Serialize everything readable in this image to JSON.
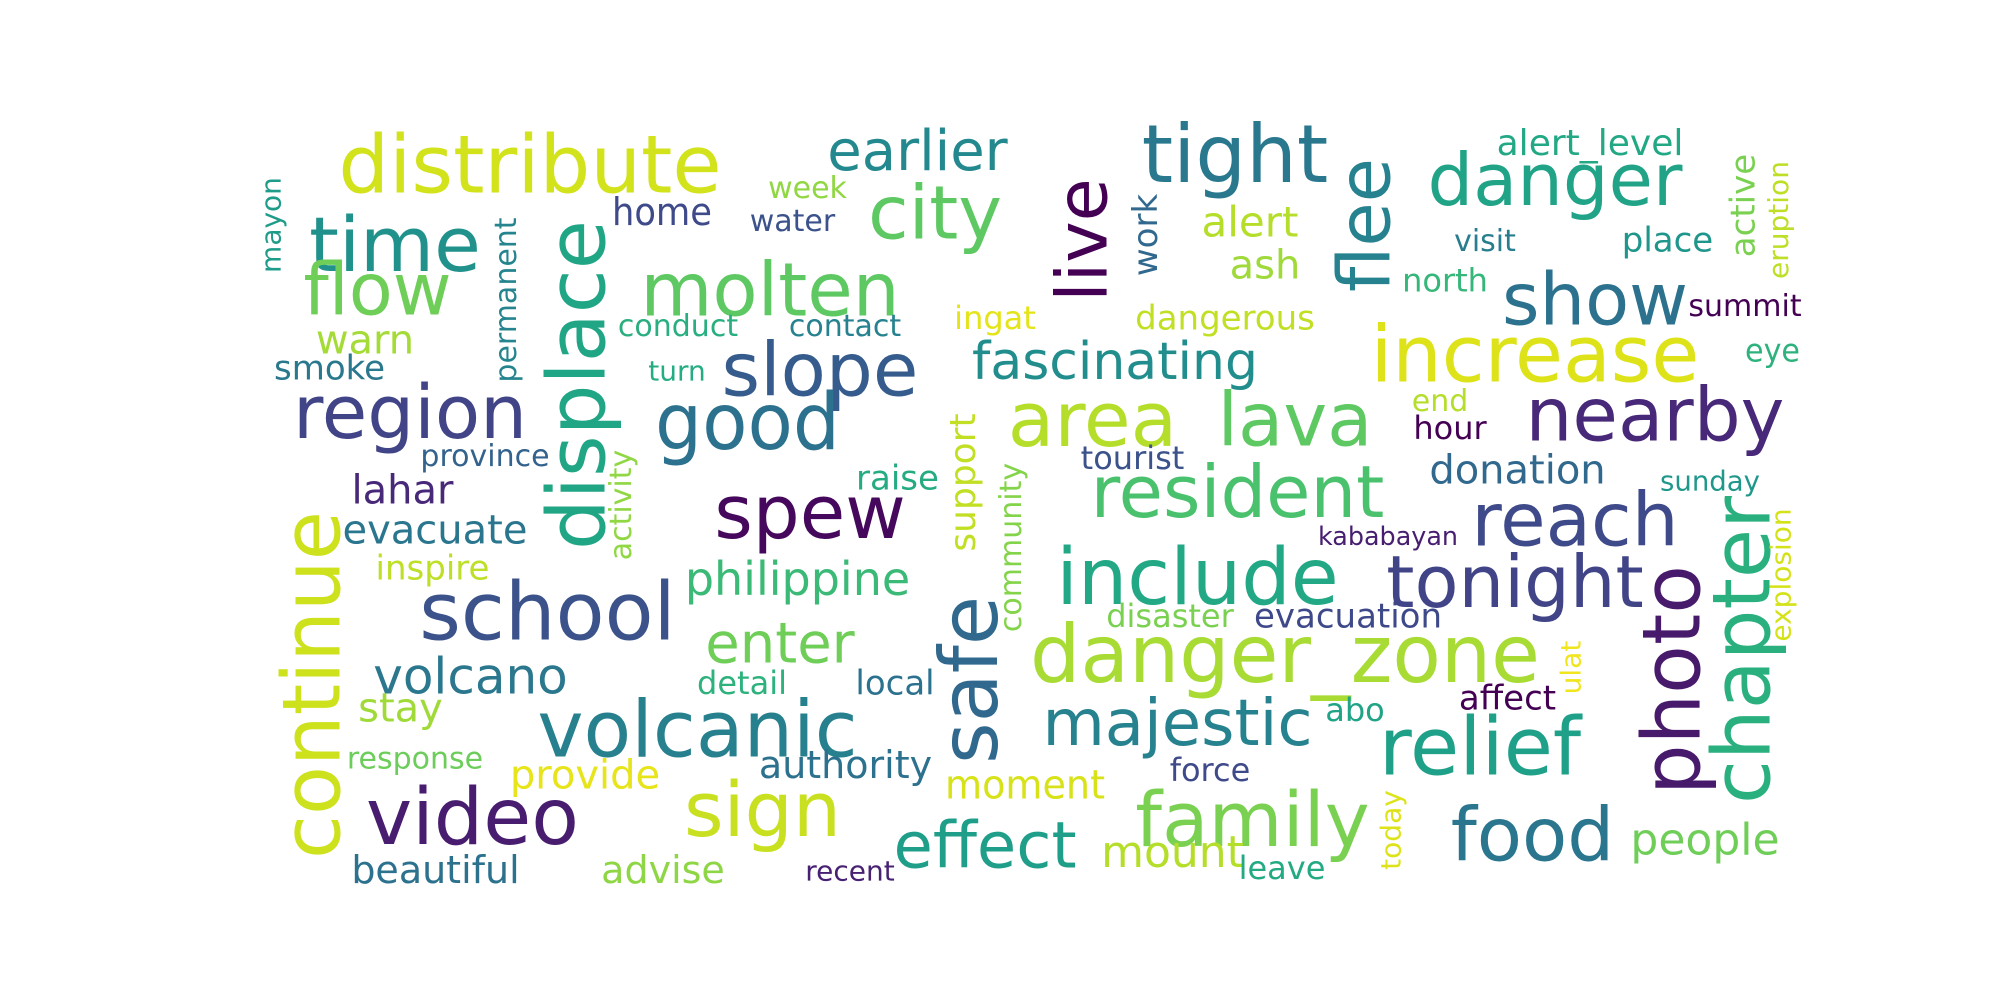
{
  "words": [
    {
      "text": "distribute",
      "color": "#d2e21b"
    },
    {
      "text": "earlier",
      "color": "#23898e"
    },
    {
      "text": "tight",
      "color": "#2a788e"
    },
    {
      "text": "danger",
      "color": "#20a386"
    },
    {
      "text": "alert_level",
      "color": "#22a884"
    },
    {
      "text": "mayon",
      "color": "#1e9c89"
    },
    {
      "text": "time",
      "color": "#21918c"
    },
    {
      "text": "permanent",
      "color": "#25848e"
    },
    {
      "text": "displace",
      "color": "#21a685"
    },
    {
      "text": "home",
      "color": "#3e4a89"
    },
    {
      "text": "week",
      "color": "#90d743"
    },
    {
      "text": "water",
      "color": "#3b528b"
    },
    {
      "text": "city",
      "color": "#5ec962"
    },
    {
      "text": "live",
      "color": "#440154"
    },
    {
      "text": "work",
      "color": "#31688e"
    },
    {
      "text": "alert",
      "color": "#b5de2b"
    },
    {
      "text": "flee",
      "color": "#26828e"
    },
    {
      "text": "visit",
      "color": "#287d8e"
    },
    {
      "text": "place",
      "color": "#1f968b"
    },
    {
      "text": "active",
      "color": "#7ad151"
    },
    {
      "text": "eruption",
      "color": "#bddf26"
    },
    {
      "text": "flow",
      "color": "#6ece58"
    },
    {
      "text": "molten",
      "color": "#5ec962"
    },
    {
      "text": "ash",
      "color": "#9fda3a"
    },
    {
      "text": "north",
      "color": "#35b779"
    },
    {
      "text": "show",
      "color": "#2c728e"
    },
    {
      "text": "summit",
      "color": "#440154"
    },
    {
      "text": "warn",
      "color": "#a5db36"
    },
    {
      "text": "conduct",
      "color": "#29af7f"
    },
    {
      "text": "contact",
      "color": "#26828e"
    },
    {
      "text": "ingat",
      "color": "#e5e419"
    },
    {
      "text": "dangerous",
      "color": "#c2df23"
    },
    {
      "text": "increase",
      "color": "#dde318"
    },
    {
      "text": "eye",
      "color": "#2db27d"
    },
    {
      "text": "smoke",
      "color": "#2a788e"
    },
    {
      "text": "turn",
      "color": "#25ac82"
    },
    {
      "text": "slope",
      "color": "#365c8d"
    },
    {
      "text": "fascinating",
      "color": "#228d8d"
    },
    {
      "text": "region",
      "color": "#414487"
    },
    {
      "text": "good",
      "color": "#2c728e"
    },
    {
      "text": "area",
      "color": "#b5de2b"
    },
    {
      "text": "lava",
      "color": "#5ec962"
    },
    {
      "text": "end",
      "color": "#b5de2b"
    },
    {
      "text": "nearby",
      "color": "#482878"
    },
    {
      "text": "hour",
      "color": "#440154"
    },
    {
      "text": "province",
      "color": "#33638d"
    },
    {
      "text": "activity",
      "color": "#90d743"
    },
    {
      "text": "support",
      "color": "#c2df23"
    },
    {
      "text": "community",
      "color": "#84d44b"
    },
    {
      "text": "tourist",
      "color": "#3b528b"
    },
    {
      "text": "donation",
      "color": "#31688e"
    },
    {
      "text": "sunday",
      "color": "#1f988b"
    },
    {
      "text": "lahar",
      "color": "#482878"
    },
    {
      "text": "raise",
      "color": "#25ab82"
    },
    {
      "text": "spew",
      "color": "#46085c"
    },
    {
      "text": "resident",
      "color": "#4ac16d"
    },
    {
      "text": "reach",
      "color": "#3e4a89"
    },
    {
      "text": "continue",
      "color": "#cde11d"
    },
    {
      "text": "evacuate",
      "color": "#2a768e"
    },
    {
      "text": "chapter",
      "color": "#2ab07f"
    },
    {
      "text": "kababayan",
      "color": "#481f70"
    },
    {
      "text": "explosion",
      "color": "#d5e21a"
    },
    {
      "text": "inspire",
      "color": "#bddf26"
    },
    {
      "text": "include",
      "color": "#22a884"
    },
    {
      "text": "tonight",
      "color": "#414487"
    },
    {
      "text": "philippine",
      "color": "#3aba76"
    },
    {
      "text": "school",
      "color": "#3b528b"
    },
    {
      "text": "safe",
      "color": "#31688e"
    },
    {
      "text": "photo",
      "color": "#481a6c"
    },
    {
      "text": "disaster",
      "color": "#7ad151"
    },
    {
      "text": "evacuation",
      "color": "#3e4989"
    },
    {
      "text": "enter",
      "color": "#6ece58"
    },
    {
      "text": "danger_zone",
      "color": "#a8db34"
    },
    {
      "text": "volcano",
      "color": "#2a778e"
    },
    {
      "text": "ulat",
      "color": "#f1e51d"
    },
    {
      "text": "detail",
      "color": "#2db27d"
    },
    {
      "text": "local",
      "color": "#2c718e"
    },
    {
      "text": "abo",
      "color": "#20a386"
    },
    {
      "text": "affect",
      "color": "#440154"
    },
    {
      "text": "stay",
      "color": "#a0da39"
    },
    {
      "text": "volcanic",
      "color": "#27808e"
    },
    {
      "text": "majestic",
      "color": "#26828e"
    },
    {
      "text": "relief",
      "color": "#1fa088"
    },
    {
      "text": "response",
      "color": "#6ccd5a"
    },
    {
      "text": "provide",
      "color": "#e7e419"
    },
    {
      "text": "authority",
      "color": "#2c718e"
    },
    {
      "text": "moment",
      "color": "#d8e219"
    },
    {
      "text": "force",
      "color": "#3e4a89"
    },
    {
      "text": "today",
      "color": "#dde318"
    },
    {
      "text": "sign",
      "color": "#c8e020"
    },
    {
      "text": "video",
      "color": "#481d6f"
    },
    {
      "text": "family",
      "color": "#7ad151"
    },
    {
      "text": "food",
      "color": "#2a768e"
    },
    {
      "text": "effect",
      "color": "#1f9e89"
    },
    {
      "text": "mount",
      "color": "#b5de2b"
    },
    {
      "text": "people",
      "color": "#6ece58"
    },
    {
      "text": "beautiful",
      "color": "#2c718e"
    },
    {
      "text": "advise",
      "color": "#8ed645"
    },
    {
      "text": "recent",
      "color": "#482173"
    },
    {
      "text": "leave",
      "color": "#24aa83"
    }
  ]
}
